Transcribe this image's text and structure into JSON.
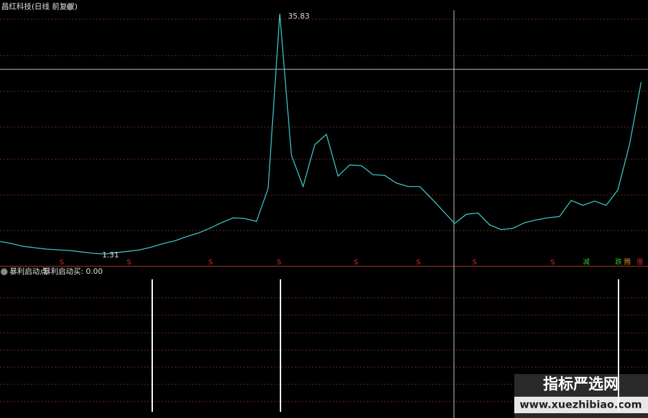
{
  "title": "昌红科技(日线 前复权)",
  "chart_data": [
    {
      "type": "line",
      "series": [
        {
          "name": "昌红科技",
          "color": "#3cc8c8",
          "values": [
            3.1,
            2.8,
            2.4,
            2.2,
            2.0,
            1.9,
            1.8,
            1.6,
            1.4,
            1.31,
            1.5,
            1.7,
            1.9,
            2.3,
            2.8,
            3.2,
            3.8,
            4.3,
            5.0,
            5.8,
            6.5,
            6.4,
            6.0,
            10.7,
            35.83,
            15.5,
            11.0,
            17.0,
            18.5,
            12.5,
            14.1,
            14.0,
            12.7,
            12.6,
            11.5,
            11.0,
            11.0,
            9.3,
            7.5,
            5.7,
            7.0,
            7.2,
            5.5,
            4.8,
            5.0,
            5.8,
            6.2,
            6.5,
            6.7,
            9.0,
            8.3,
            8.9,
            8.3,
            10.5,
            17.0,
            26.0
          ]
        }
      ],
      "annotations": [
        "35.83",
        "1.31"
      ],
      "markers": [
        "S",
        "S",
        "S",
        "S",
        "S",
        "S",
        "S",
        "S",
        "减",
        "跌",
        "腾",
        "涨"
      ]
    },
    {
      "type": "bar",
      "title": "暴利启动点",
      "legend": "暴利启动买: 0.00",
      "color": "#ffffff",
      "values": [
        0,
        0,
        0,
        0,
        0,
        0,
        0,
        0,
        0,
        0,
        0,
        0,
        0,
        1,
        0,
        0,
        0,
        0,
        0,
        0,
        0,
        0,
        0,
        0,
        1,
        0,
        0,
        0,
        0,
        0,
        0,
        0,
        0,
        0,
        0,
        0,
        0,
        0,
        0,
        0,
        0,
        0,
        0,
        0,
        0,
        0,
        0,
        0,
        0,
        0,
        0,
        0,
        0,
        1,
        0,
        0
      ]
    }
  ],
  "watermark": {
    "name": "指标严选网",
    "url": "www.xuezhibiao.com"
  }
}
